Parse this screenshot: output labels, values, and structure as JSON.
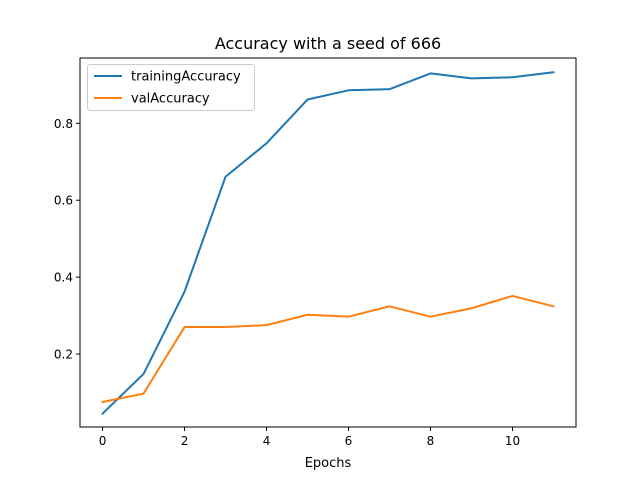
{
  "chart_data": {
    "type": "line",
    "title": "Accuracy with a seed of 666",
    "xlabel": "Epochs",
    "ylabel": "",
    "x": [
      0,
      1,
      2,
      3,
      4,
      5,
      6,
      7,
      8,
      9,
      10,
      11
    ],
    "xlim": [
      -0.55,
      11.55
    ],
    "ylim": [
      0.01,
      0.97
    ],
    "xticks": [
      0,
      2,
      4,
      6,
      8,
      10
    ],
    "yticks": [
      0.2,
      0.4,
      0.6,
      0.8
    ],
    "ytick_labels": [
      "0.2",
      "0.4",
      "0.6",
      "0.8"
    ],
    "grid": false,
    "legend_position": "top-left",
    "series": [
      {
        "name": "trainingAccuracy",
        "color": "#1f77b4",
        "values": [
          0.045,
          0.148,
          0.362,
          0.661,
          0.748,
          0.862,
          0.886,
          0.889,
          0.93,
          0.917,
          0.92,
          0.933
        ]
      },
      {
        "name": "valAccuracy",
        "color": "#ff7f0e",
        "values": [
          0.075,
          0.097,
          0.27,
          0.27,
          0.275,
          0.302,
          0.297,
          0.324,
          0.297,
          0.319,
          0.351,
          0.324
        ]
      }
    ]
  }
}
